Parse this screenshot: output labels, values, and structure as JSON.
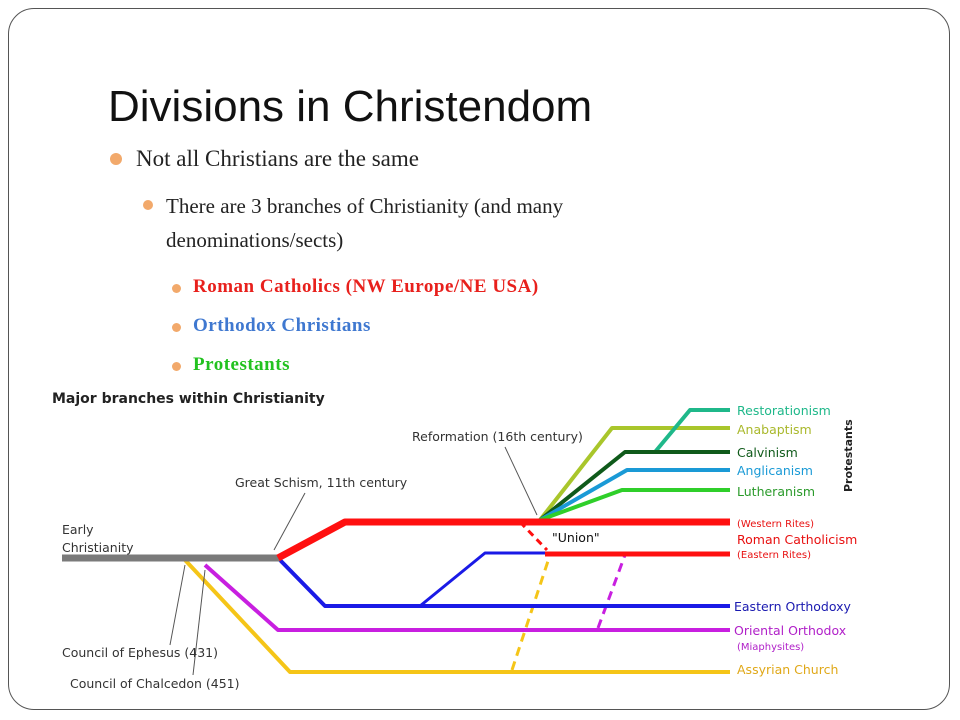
{
  "title": "Divisions in Christendom",
  "outline": {
    "text": "Not all Christians are the same",
    "sub": {
      "lines": [
        "There are 3 branches of Christianity (and many",
        "denominations/sects)"
      ],
      "branches": [
        "Roman Catholics (NW Europe/NE USA)",
        "Orthodox Christians",
        "Protestants"
      ]
    }
  },
  "diagram": {
    "title": "Major branches within Christianity",
    "origin": [
      "Early",
      "Christianity"
    ],
    "events": {
      "schism": "Great Schism, 11th century",
      "reformation": "Reformation (16th century)",
      "union": "\"Union\"",
      "ephesus": "Council of Ephesus (431)",
      "chalcedon": "Council of Chalcedon (451)"
    },
    "protestant_group": "Protestants",
    "protestant_branches": [
      "Restorationism",
      "Anabaptism",
      "Calvinism",
      "Anglicanism",
      "Lutheranism"
    ],
    "western_rites": "(Western Rites)",
    "roman_catholicism": "Roman Catholicism",
    "eastern_rites": "(Eastern Rites)",
    "eastern_orthodoxy": "Eastern Orthodoxy",
    "oriental_orthodox": "Oriental Orthodox",
    "miaphysites": "(Miaphysites)",
    "assyrian": "Assyrian Church"
  }
}
